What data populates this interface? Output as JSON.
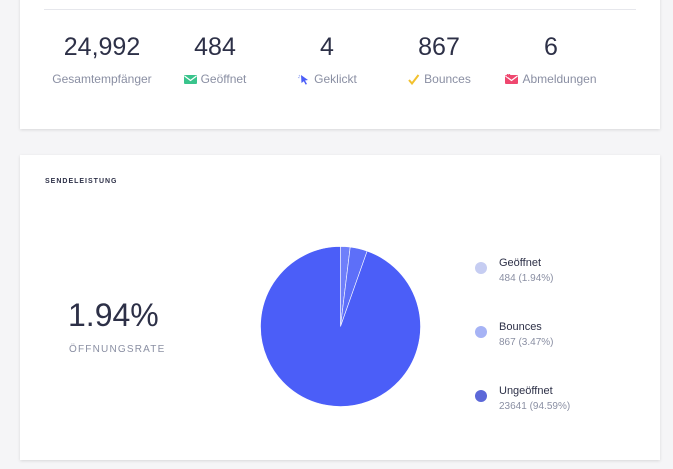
{
  "stats": [
    {
      "value": "24,992",
      "label": "Gesamtempfänger",
      "icon": ""
    },
    {
      "value": "484",
      "label": "Geöffnet",
      "icon": "envelope-icon"
    },
    {
      "value": "4",
      "label": "Geklickt",
      "icon": "cursor-click-icon"
    },
    {
      "value": "867",
      "label": "Bounces",
      "icon": "checkmark-icon"
    },
    {
      "value": "6",
      "label": "Abmeldungen",
      "icon": "unsubscribe-envelope-icon"
    }
  ],
  "performance": {
    "title": "SENDELEISTUNG",
    "rate_value": "1.94%",
    "rate_label": "ÖFFNUNGSRATE"
  },
  "colors": {
    "opened": "#c6cdf2",
    "bounces": "#a6b3f5",
    "unopened": "#4b5ef8"
  },
  "chart_data": {
    "type": "pie",
    "categories": [
      "Geöffnet",
      "Bounces",
      "Ungeöffnet"
    ],
    "values": [
      484,
      867,
      23641
    ],
    "labels": [
      "484 (1.94%)",
      "867 (3.47%)",
      "23641 (94.59%)"
    ],
    "legend_position": "right"
  }
}
